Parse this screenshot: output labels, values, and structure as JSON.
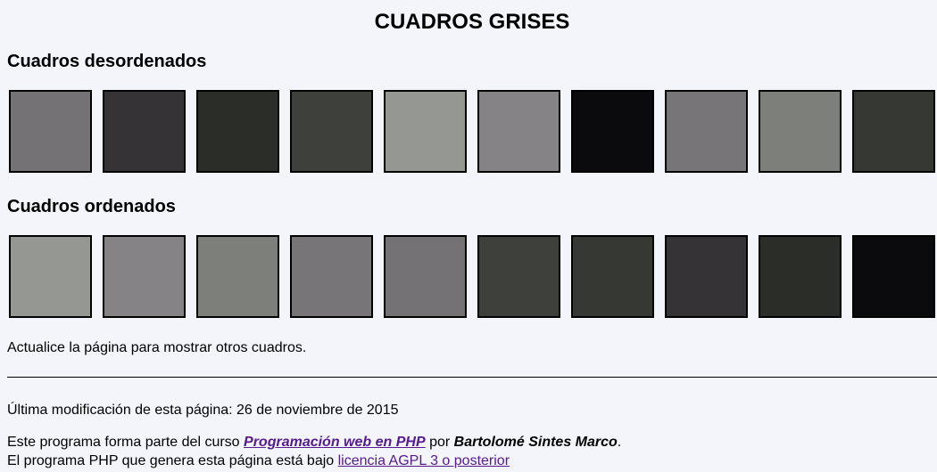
{
  "page": {
    "title": "CUADROS GRISES"
  },
  "unsorted": {
    "heading": "Cuadros desordenados",
    "squares": [
      "#747274",
      "#353335",
      "#2b2d29",
      "#3e403c",
      "#959793",
      "#858385",
      "#0b0a0c",
      "#777577",
      "#7d7f7b",
      "#363834"
    ]
  },
  "sorted": {
    "heading": "Cuadros ordenados",
    "squares": [
      "#959793",
      "#858385",
      "#7d7f7b",
      "#777577",
      "#747274",
      "#3e403c",
      "#363834",
      "#353335",
      "#2b2d29",
      "#0b0a0c"
    ]
  },
  "note": "Actualice la página para mostrar otros cuadros.",
  "footer": {
    "last_modified_prefix": "Última modificación de esta página: ",
    "last_modified_date": "26 de noviembre de 2015",
    "line1_prefix": "Este programa forma parte del curso ",
    "course_link": "Programación web en PHP",
    "line1_middle": " por ",
    "author": "Bartolomé Sintes Marco",
    "line1_suffix": ".",
    "line2_prefix": "El programa PHP que genera esta página está bajo ",
    "license_link": "licencia AGPL 3 o posterior"
  }
}
